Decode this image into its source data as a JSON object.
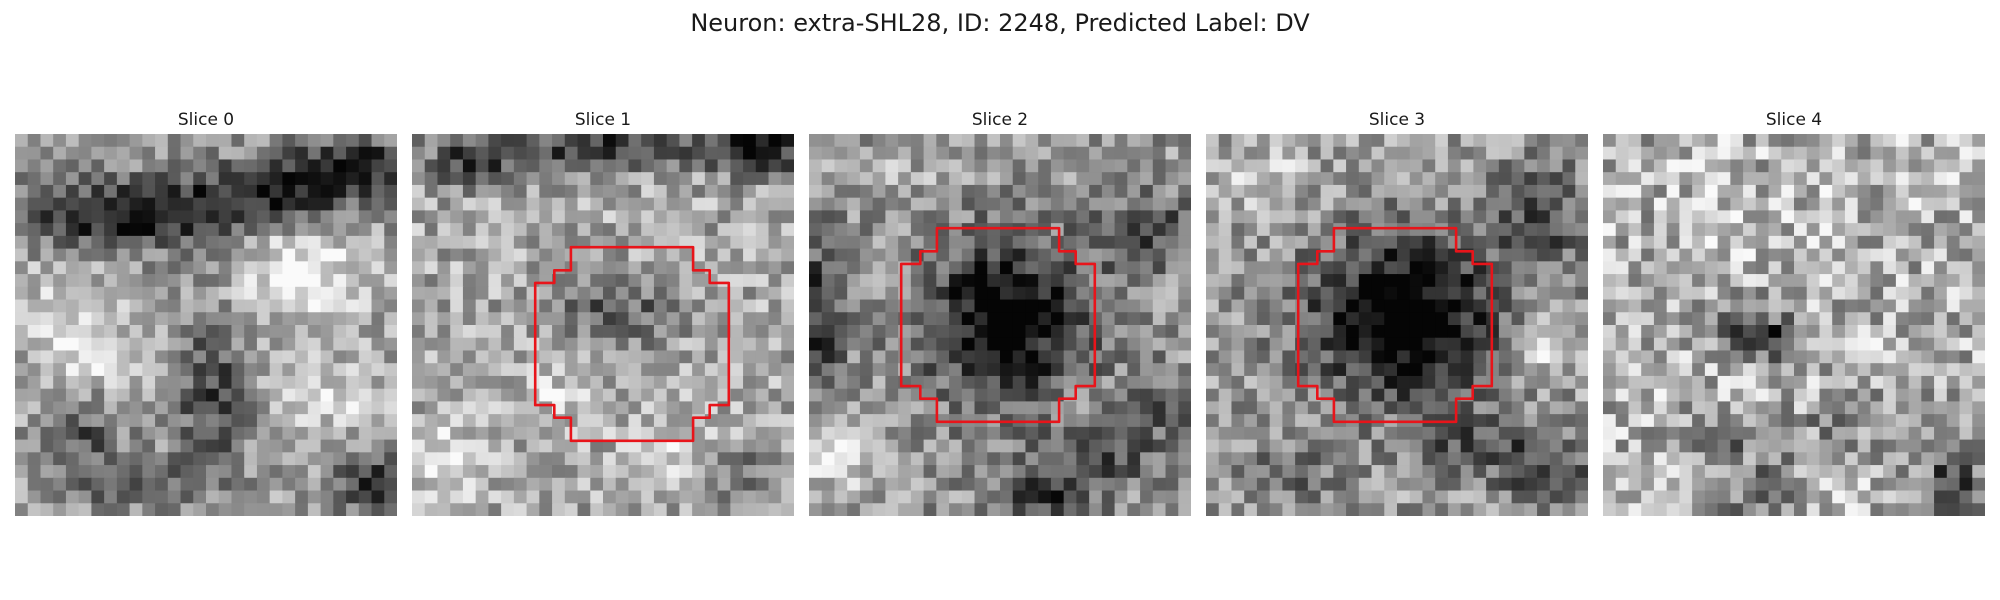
{
  "figure": {
    "title": "Neuron: extra-SHL28, ID: 2248, Predicted Label: DV"
  },
  "panels": [
    {
      "title": "Slice 0",
      "has_roi_outline": false
    },
    {
      "title": "Slice 1",
      "has_roi_outline": true
    },
    {
      "title": "Slice 2",
      "has_roi_outline": true
    },
    {
      "title": "Slice 3",
      "has_roi_outline": true
    },
    {
      "title": "Slice 4",
      "has_roi_outline": false
    }
  ],
  "colors": {
    "roi_outline": "#e8141a",
    "background": "#ffffff",
    "title_text": "#1a1a1a"
  }
}
